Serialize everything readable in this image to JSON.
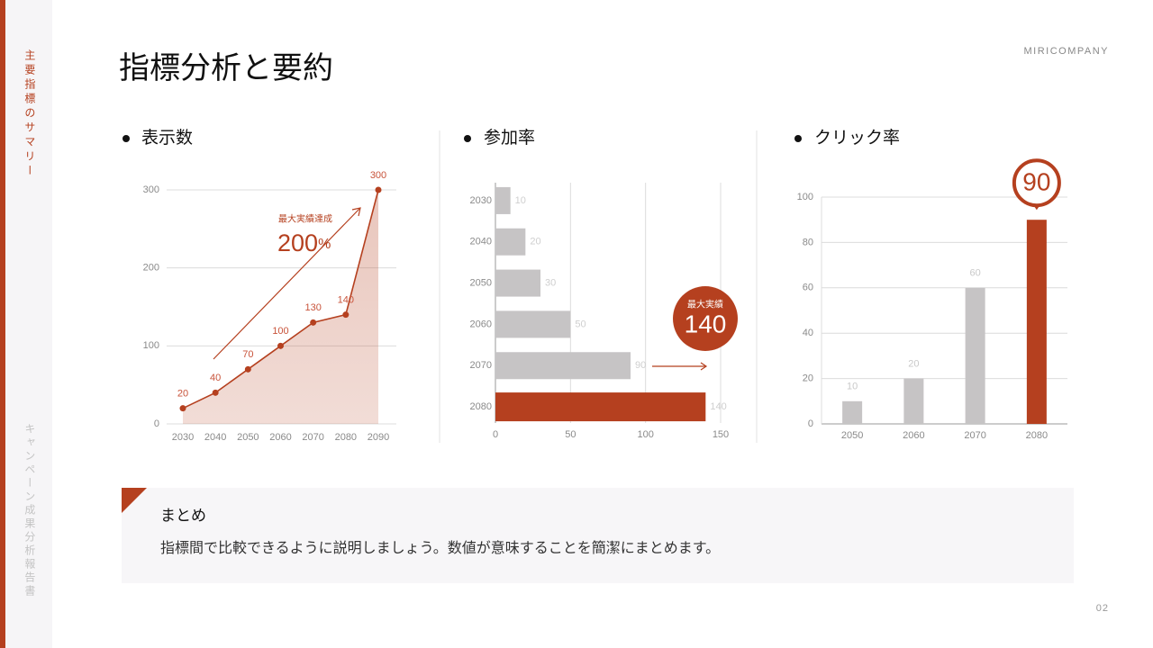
{
  "sidebar": {
    "top": "主要指標のサマリー",
    "bottom": "キャンペーン成果分析報告書"
  },
  "header": {
    "title": "指標分析と要約",
    "company": "MIRICOMPANY"
  },
  "chart_data": [
    {
      "type": "area",
      "title": "表示数",
      "x": [
        2030,
        2040,
        2050,
        2060,
        2070,
        2080,
        2090
      ],
      "values": [
        20,
        40,
        70,
        100,
        130,
        140,
        300
      ],
      "color": "#b5401f",
      "xlim": [
        2030,
        2090
      ],
      "xticks": [
        2030,
        2040,
        2050,
        2060,
        2070,
        2080,
        2090
      ],
      "ylim": [
        0,
        300
      ],
      "yticks": [
        0,
        100,
        200,
        300
      ],
      "grid": true,
      "annotation": {
        "caption": "最大実績達成",
        "figure": "200",
        "unit": "%"
      }
    },
    {
      "type": "barh",
      "title": "参加率",
      "categories": [
        "2030",
        "2040",
        "2050",
        "2060",
        "2070",
        "2080"
      ],
      "values": [
        10,
        20,
        30,
        50,
        90,
        140
      ],
      "colors": [
        "#c6c4c5",
        "#c6c4c5",
        "#c6c4c5",
        "#c6c4c5",
        "#c6c4c5",
        "#b5401f"
      ],
      "xlim": [
        0,
        150
      ],
      "xticks": [
        0,
        50,
        100,
        150
      ],
      "grid": true,
      "annotation": {
        "caption": "最大実績"
      }
    },
    {
      "type": "bar",
      "title": "クリック率",
      "categories": [
        "2050",
        "2060",
        "2070",
        "2080"
      ],
      "values": [
        10,
        20,
        60,
        90
      ],
      "colors": [
        "#c6c4c5",
        "#c6c4c5",
        "#c6c4c5",
        "#b5401f"
      ],
      "ylim": [
        0,
        100
      ],
      "yticks": [
        0,
        20,
        40,
        60,
        80,
        100
      ],
      "grid": true
    }
  ],
  "summary": {
    "title": "まとめ",
    "text": "指標間で比較できるように説明しましょう。数値が意味することを簡潔にまとめます。"
  },
  "page_number": "02"
}
